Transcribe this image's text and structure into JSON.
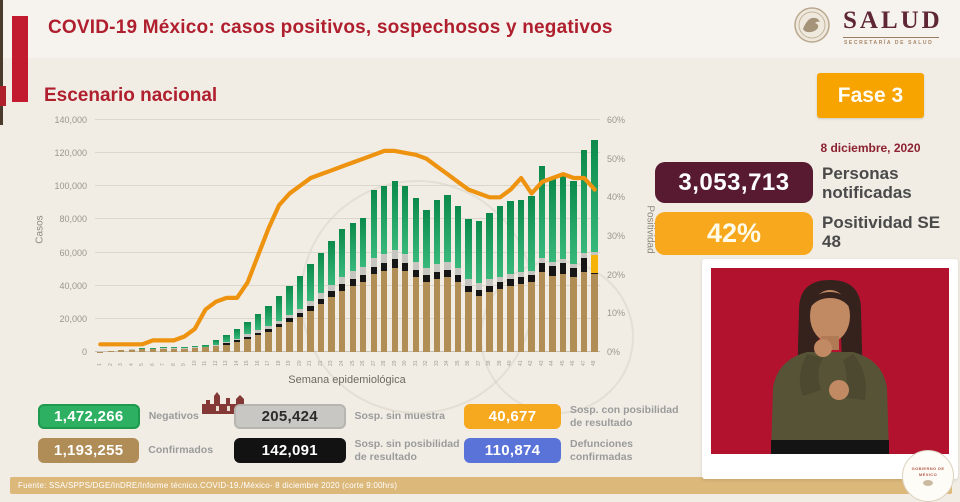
{
  "header": {
    "title": "COVID-19 México: casos positivos, sospechosos y negativos",
    "section_title": "Escenario nacional",
    "accent_color": "#c21b2f",
    "title_color": "#b01f2e"
  },
  "logo": {
    "name": "SALUD",
    "subtitle": "SECRETARÍA DE SALUD"
  },
  "phase": {
    "label": "Fase 3",
    "badge_color": "#f7a300",
    "date": "8 diciembre, 2020"
  },
  "stats": [
    {
      "value": "3,053,713",
      "label": "Personas notificadas",
      "color": "#571a31"
    },
    {
      "value": "42%",
      "label": "Positividad SE 48",
      "color": "#f7a81c"
    }
  ],
  "chart_data": {
    "type": "bar",
    "title": "Escenario nacional",
    "xlabel": "Semana epidemiológica",
    "ylabel_left": "Casos",
    "ylabel_right": "Positividad",
    "ylim_left": [
      0,
      140000
    ],
    "ylim_right": [
      0,
      60
    ],
    "yticks_left": [
      0,
      20000,
      40000,
      60000,
      80000,
      100000,
      120000,
      140000
    ],
    "yticks_right": [
      0,
      10,
      20,
      30,
      40,
      50,
      60
    ],
    "grid": true,
    "x": [
      1,
      2,
      3,
      4,
      5,
      6,
      7,
      8,
      9,
      10,
      11,
      12,
      13,
      14,
      15,
      16,
      17,
      18,
      19,
      20,
      21,
      22,
      23,
      24,
      25,
      26,
      27,
      28,
      29,
      30,
      31,
      32,
      33,
      34,
      35,
      36,
      37,
      38,
      39,
      40,
      41,
      42,
      43,
      44,
      45,
      46,
      47,
      48
    ],
    "series": [
      {
        "name": "Confirmados",
        "color": "#b18e55",
        "values": [
          300,
          500,
          1000,
          1300,
          1600,
          1600,
          1900,
          1900,
          1900,
          2200,
          2800,
          3500,
          4500,
          6000,
          8000,
          10000,
          12000,
          15000,
          18000,
          21000,
          25000,
          29000,
          33000,
          37000,
          40000,
          42000,
          47000,
          49000,
          51000,
          49000,
          45000,
          42000,
          44000,
          45000,
          42000,
          36000,
          34000,
          36000,
          38000,
          40000,
          41000,
          42000,
          48000,
          46000,
          47000,
          45000,
          48000,
          47000
        ]
      },
      {
        "name": "Sosp. sin posibilidad de resultado",
        "color": "#161616",
        "values": [
          0,
          0,
          0,
          0,
          0,
          0,
          0,
          0,
          0,
          0,
          200,
          400,
          700,
          1000,
          1300,
          1600,
          1800,
          2000,
          2300,
          2600,
          3000,
          3300,
          3600,
          4000,
          4200,
          4400,
          4600,
          4800,
          5000,
          4800,
          4400,
          4200,
          4400,
          4500,
          4200,
          3800,
          3600,
          3800,
          4000,
          4200,
          4400,
          4600,
          5500,
          6000,
          6500,
          6000,
          9000,
          500
        ]
      },
      {
        "name": "Sosp. con posibilidad de resultado",
        "color": "#f6b40a",
        "values": [
          0,
          0,
          0,
          0,
          0,
          0,
          0,
          0,
          0,
          0,
          0,
          0,
          0,
          0,
          0,
          0,
          0,
          0,
          0,
          0,
          0,
          0,
          0,
          0,
          0,
          0,
          0,
          0,
          0,
          0,
          0,
          0,
          0,
          0,
          0,
          0,
          0,
          0,
          0,
          0,
          0,
          0,
          0,
          0,
          0,
          0,
          0,
          11000
        ]
      },
      {
        "name": "Sosp. sin muestra",
        "color": "#c7c5c0",
        "values": [
          100,
          100,
          200,
          300,
          400,
          400,
          500,
          500,
          500,
          600,
          300,
          500,
          800,
          1000,
          1300,
          1600,
          1800,
          2000,
          2300,
          2600,
          3000,
          3400,
          3800,
          4200,
          4500,
          4700,
          5000,
          5200,
          5400,
          5200,
          4800,
          4500,
          4700,
          4800,
          4500,
          4000,
          3800,
          4000,
          3000,
          3000,
          2800,
          2600,
          3000,
          2500,
          2500,
          2200,
          2500,
          2000
        ]
      },
      {
        "name": "Negativos",
        "color": "#149c57",
        "gradient": [
          "#38b97b",
          "#0b8a4b"
        ],
        "values": [
          100,
          200,
          300,
          400,
          500,
          500,
          600,
          600,
          600,
          700,
          1200,
          2600,
          4000,
          6000,
          7400,
          9800,
          12400,
          15000,
          17400,
          19800,
          22000,
          24300,
          26600,
          28800,
          29300,
          29900,
          41400,
          41000,
          41600,
          41000,
          38800,
          35300,
          38900,
          40700,
          37300,
          36200,
          37600,
          40200,
          43000,
          43800,
          43800,
          44800,
          55500,
          50500,
          51000,
          49800,
          62500,
          67500
        ]
      }
    ],
    "line": {
      "name": "Positividad",
      "color": "#ee9310",
      "axis": "right",
      "values": [
        2,
        2,
        2,
        2,
        2,
        3,
        3,
        3,
        4,
        6,
        11,
        13,
        14,
        14,
        18,
        25,
        32,
        38,
        41,
        43,
        45,
        46,
        47,
        48,
        49,
        50,
        51,
        52,
        52,
        51.5,
        51,
        50,
        48,
        46,
        44,
        42,
        41,
        40,
        40,
        42,
        45,
        41,
        44,
        45,
        46,
        45,
        45,
        42
      ]
    },
    "legend_position": "bottom"
  },
  "legend": [
    {
      "value": "1,472,266",
      "label": "Negativos",
      "color": "#2eb063",
      "text_color": "#ffffff",
      "border": "#1d9a4e"
    },
    {
      "value": "205,424",
      "label": "Sosp. sin muestra",
      "color": "#c9c7c3",
      "text_color": "#2b2b2b",
      "border": "#b7b5b0"
    },
    {
      "value": "40,677",
      "label": "Sosp. con posibilidad de resultado",
      "color": "#f6a81f",
      "text_color": "#ffffff",
      "border": ""
    },
    {
      "value": "1,193,255",
      "label": "Confirmados",
      "color": "#b08d57",
      "text_color": "#ffffff",
      "border": ""
    },
    {
      "value": "142,091",
      "label": "Sosp. sin posibilidad de resultado",
      "color": "#121212",
      "text_color": "#ffffff",
      "border": ""
    },
    {
      "value": "110,874",
      "label": "Defunciones confirmadas",
      "color": "#5a73d8",
      "text_color": "#ffffff",
      "border": ""
    }
  ],
  "footer": {
    "source": "Fuente: SSA/SPPS/DGE/InDRE/Informe técnico.COVID-19./México- 8 diciembre 2020 (corte 9:00hrs)"
  },
  "seal": {
    "line1": "GOBIERNO DE",
    "line2": "MÉXICO"
  }
}
